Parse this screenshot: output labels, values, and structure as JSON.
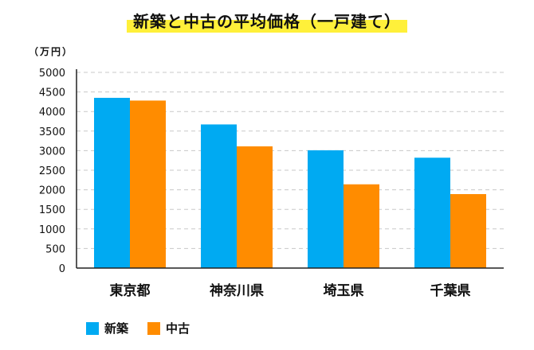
{
  "chart_data": {
    "type": "bar",
    "title": "新築と中古の平均価格（一戸建て）",
    "unit_label": "（万円）",
    "xlabel": "",
    "ylabel": "",
    "categories": [
      "東京都",
      "神奈川県",
      "埼玉県",
      "千葉県"
    ],
    "series": [
      {
        "name": "新築",
        "color": "#00aaf2",
        "values": [
          4350,
          3670,
          3010,
          2820
        ]
      },
      {
        "name": "中古",
        "color": "#ff8c00",
        "values": [
          4280,
          3110,
          2140,
          1890
        ]
      }
    ],
    "ylim": [
      0,
      5000
    ],
    "yticks": [
      "0",
      "500",
      "1000",
      "1500",
      "2000",
      "2500",
      "3000",
      "3500",
      "4000",
      "4500",
      "5000"
    ],
    "grid": true,
    "legend_position": "bottom-left"
  }
}
